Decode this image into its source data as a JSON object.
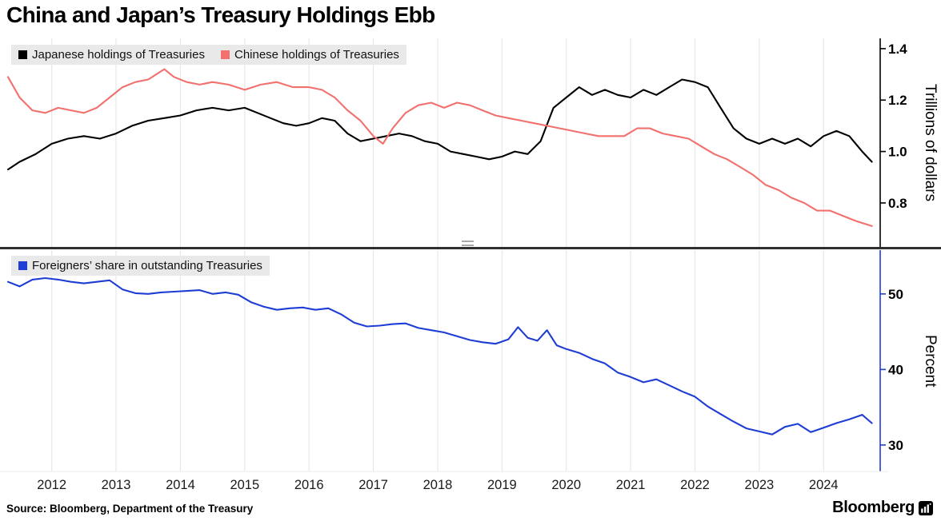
{
  "title": "China and Japan’s Treasury Holdings Ebb",
  "source": "Source: Bloomberg, Department of the Treasury",
  "brand": "Bloomberg",
  "colors": {
    "japan_line": "#000000",
    "china_line": "#f2706d",
    "foreign_line": "#1e3dd4",
    "gridline": "#e4e4e4",
    "legend_bg": "#e9e9e9",
    "divider": "#2f2f2f"
  },
  "chart_data": [
    {
      "type": "line",
      "panel": "top",
      "ylabel": "Trillions of dollars",
      "ylim": [
        0.629,
        1.44
      ],
      "xlim": [
        2011.32,
        2024.88
      ],
      "grid": "vertical-years",
      "legend_position": "top-left",
      "yticks": [
        {
          "value": 0.8,
          "label": "0.8"
        },
        {
          "value": 1.0,
          "label": "1.0"
        },
        {
          "value": 1.2,
          "label": "1.2"
        },
        {
          "value": 1.4,
          "label": "1.4"
        }
      ],
      "series": [
        {
          "name": "Japanese holdings of Treasuries",
          "color": "#000000",
          "x": [
            2011.32,
            2011.5,
            2011.75,
            2012.0,
            2012.25,
            2012.5,
            2012.75,
            2013.0,
            2013.25,
            2013.5,
            2013.75,
            2014.0,
            2014.25,
            2014.5,
            2014.75,
            2015.0,
            2015.2,
            2015.4,
            2015.6,
            2015.8,
            2016.0,
            2016.2,
            2016.4,
            2016.6,
            2016.8,
            2017.0,
            2017.2,
            2017.4,
            2017.6,
            2017.8,
            2018.0,
            2018.2,
            2018.4,
            2018.6,
            2018.8,
            2019.0,
            2019.2,
            2019.4,
            2019.6,
            2019.8,
            2020.0,
            2020.2,
            2020.4,
            2020.6,
            2020.8,
            2021.0,
            2021.2,
            2021.4,
            2021.6,
            2021.8,
            2022.0,
            2022.2,
            2022.4,
            2022.6,
            2022.8,
            2023.0,
            2023.2,
            2023.4,
            2023.6,
            2023.8,
            2024.0,
            2024.2,
            2024.4,
            2024.6,
            2024.75
          ],
          "values": [
            0.93,
            0.96,
            0.99,
            1.03,
            1.05,
            1.06,
            1.05,
            1.07,
            1.1,
            1.12,
            1.13,
            1.14,
            1.16,
            1.17,
            1.16,
            1.17,
            1.15,
            1.13,
            1.11,
            1.1,
            1.11,
            1.13,
            1.12,
            1.07,
            1.04,
            1.05,
            1.06,
            1.07,
            1.06,
            1.04,
            1.03,
            1.0,
            0.99,
            0.98,
            0.97,
            0.98,
            1.0,
            0.99,
            1.04,
            1.17,
            1.21,
            1.25,
            1.22,
            1.24,
            1.22,
            1.21,
            1.24,
            1.22,
            1.25,
            1.28,
            1.27,
            1.25,
            1.17,
            1.09,
            1.05,
            1.03,
            1.05,
            1.03,
            1.05,
            1.02,
            1.06,
            1.08,
            1.06,
            1.0,
            0.96
          ]
        },
        {
          "name": "Chinese holdings of Treasuries",
          "color": "#f2706d",
          "x": [
            2011.32,
            2011.5,
            2011.7,
            2011.9,
            2012.1,
            2012.3,
            2012.5,
            2012.7,
            2012.9,
            2013.1,
            2013.3,
            2013.5,
            2013.75,
            2013.9,
            2014.1,
            2014.3,
            2014.5,
            2014.75,
            2015.0,
            2015.25,
            2015.5,
            2015.75,
            2016.0,
            2016.2,
            2016.4,
            2016.6,
            2016.8,
            2017.0,
            2017.15,
            2017.3,
            2017.5,
            2017.7,
            2017.9,
            2018.1,
            2018.3,
            2018.5,
            2018.7,
            2018.9,
            2019.1,
            2019.3,
            2019.5,
            2019.7,
            2019.9,
            2020.1,
            2020.3,
            2020.5,
            2020.7,
            2020.9,
            2021.1,
            2021.3,
            2021.5,
            2021.7,
            2021.9,
            2022.1,
            2022.3,
            2022.5,
            2022.7,
            2022.9,
            2023.1,
            2023.3,
            2023.5,
            2023.7,
            2023.9,
            2024.1,
            2024.3,
            2024.5,
            2024.75
          ],
          "values": [
            1.29,
            1.21,
            1.16,
            1.15,
            1.17,
            1.16,
            1.15,
            1.17,
            1.21,
            1.25,
            1.27,
            1.28,
            1.32,
            1.29,
            1.27,
            1.26,
            1.27,
            1.26,
            1.24,
            1.26,
            1.27,
            1.25,
            1.25,
            1.24,
            1.21,
            1.16,
            1.12,
            1.06,
            1.03,
            1.09,
            1.15,
            1.18,
            1.19,
            1.17,
            1.19,
            1.18,
            1.16,
            1.14,
            1.13,
            1.12,
            1.11,
            1.1,
            1.09,
            1.08,
            1.07,
            1.06,
            1.06,
            1.06,
            1.09,
            1.09,
            1.07,
            1.06,
            1.05,
            1.02,
            0.99,
            0.97,
            0.94,
            0.91,
            0.87,
            0.85,
            0.82,
            0.8,
            0.77,
            0.77,
            0.75,
            0.73,
            0.71
          ]
        }
      ]
    },
    {
      "type": "line",
      "panel": "bottom",
      "ylabel": "Percent",
      "ylim": [
        26.5,
        55.8
      ],
      "xlim": [
        2011.32,
        2024.88
      ],
      "grid": "vertical-years",
      "legend_position": "top-left",
      "yticks": [
        {
          "value": 30,
          "label": "30"
        },
        {
          "value": 40,
          "label": "40"
        },
        {
          "value": 50,
          "label": "50"
        }
      ],
      "xticks": [
        {
          "value": 2012,
          "label": "2012"
        },
        {
          "value": 2013,
          "label": "2013"
        },
        {
          "value": 2014,
          "label": "2014"
        },
        {
          "value": 2015,
          "label": "2015"
        },
        {
          "value": 2016,
          "label": "2016"
        },
        {
          "value": 2017,
          "label": "2017"
        },
        {
          "value": 2018,
          "label": "2018"
        },
        {
          "value": 2019,
          "label": "2019"
        },
        {
          "value": 2020,
          "label": "2020"
        },
        {
          "value": 2021,
          "label": "2021"
        },
        {
          "value": 2022,
          "label": "2022"
        },
        {
          "value": 2023,
          "label": "2023"
        },
        {
          "value": 2024,
          "label": "2024"
        }
      ],
      "series": [
        {
          "name": "Foreigners’ share in outstanding Treasuries",
          "color": "#1e3dd4",
          "x": [
            2011.32,
            2011.5,
            2011.7,
            2011.9,
            2012.1,
            2012.3,
            2012.5,
            2012.7,
            2012.9,
            2013.1,
            2013.3,
            2013.5,
            2013.7,
            2013.9,
            2014.1,
            2014.3,
            2014.5,
            2014.7,
            2014.9,
            2015.1,
            2015.3,
            2015.5,
            2015.7,
            2015.9,
            2016.1,
            2016.3,
            2016.5,
            2016.7,
            2016.9,
            2017.1,
            2017.3,
            2017.5,
            2017.7,
            2017.9,
            2018.1,
            2018.3,
            2018.5,
            2018.7,
            2018.9,
            2019.1,
            2019.25,
            2019.4,
            2019.55,
            2019.7,
            2019.85,
            2020.0,
            2020.2,
            2020.4,
            2020.6,
            2020.8,
            2021.0,
            2021.2,
            2021.4,
            2021.6,
            2021.8,
            2022.0,
            2022.2,
            2022.4,
            2022.6,
            2022.8,
            2023.0,
            2023.2,
            2023.4,
            2023.6,
            2023.8,
            2024.0,
            2024.2,
            2024.4,
            2024.6,
            2024.75
          ],
          "values": [
            51.6,
            51.0,
            51.9,
            52.1,
            51.9,
            51.6,
            51.4,
            51.6,
            51.8,
            50.6,
            50.1,
            50.0,
            50.2,
            50.3,
            50.4,
            50.5,
            50.0,
            50.2,
            49.9,
            48.9,
            48.3,
            47.9,
            48.1,
            48.2,
            47.9,
            48.1,
            47.3,
            46.2,
            45.7,
            45.8,
            46.0,
            46.1,
            45.5,
            45.2,
            44.9,
            44.4,
            43.9,
            43.6,
            43.4,
            44.0,
            45.6,
            44.2,
            43.8,
            45.2,
            43.2,
            42.7,
            42.2,
            41.4,
            40.8,
            39.6,
            39.0,
            38.3,
            38.7,
            37.9,
            37.1,
            36.4,
            35.1,
            34.1,
            33.1,
            32.2,
            31.8,
            31.4,
            32.4,
            32.8,
            31.7,
            32.3,
            32.9,
            33.4,
            34.0,
            32.9
          ]
        }
      ]
    }
  ]
}
